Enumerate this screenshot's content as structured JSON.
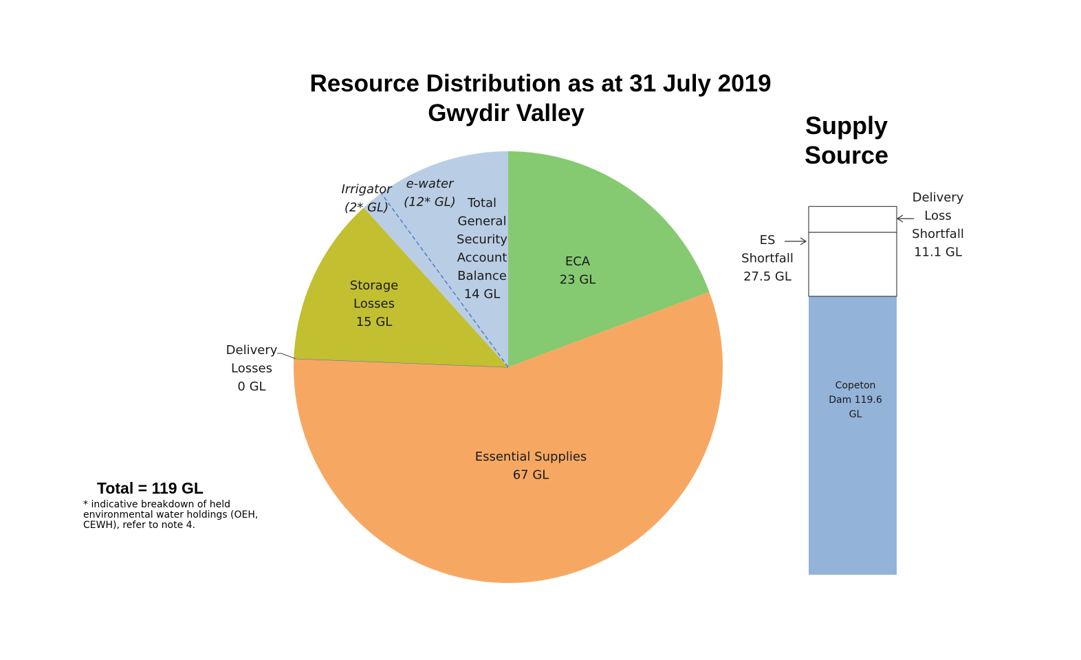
{
  "title_line1": "Resource Distribution as at 31 July 2019",
  "title_line2": "Gwydir Valley",
  "total": "Total = 119 GL",
  "footnote": "* indicative breakdown of held environmental water holdings (OEH, CEWH), refer to note 4.",
  "supply_title_line1": "Supply",
  "supply_title_line2": "Source",
  "colors": {
    "eca": "#85c971",
    "essential": "#f6a862",
    "delivery": "#3f6fb5",
    "storage": "#c2bf31",
    "general_security": "#b9cde4",
    "supply_bar": "#94b3d8",
    "supply_boxes": "#ffffff",
    "divider": "#4f7ec4"
  },
  "chart_data": [
    {
      "type": "pie",
      "title": "Resource Distribution as at 31 July 2019 Gwydir Valley",
      "total_label": "Total = 119 GL",
      "slices": [
        {
          "key": "eca",
          "label": [
            "ECA",
            "23 GL"
          ],
          "value": 23
        },
        {
          "key": "essential",
          "label": [
            "Essential Supplies",
            "67 GL"
          ],
          "value": 67
        },
        {
          "key": "delivery",
          "label": [
            "Delivery",
            "Losses",
            "0 GL"
          ],
          "value": 0
        },
        {
          "key": "storage",
          "label": [
            "Storage",
            "Losses",
            "15 GL"
          ],
          "value": 15
        },
        {
          "key": "general_security",
          "label": [
            "Total",
            "General",
            "Security",
            "Account",
            "Balance",
            "14 GL"
          ],
          "value": 14
        }
      ],
      "sub_breakdown": [
        {
          "label": [
            "Irrigator",
            "(2* GL)"
          ],
          "value": 2
        },
        {
          "label": [
            "e-water",
            "(12* GL)"
          ],
          "value": 12
        }
      ]
    },
    {
      "type": "bar",
      "title": "Supply Source",
      "stacked": true,
      "segments": [
        {
          "key": "copeton",
          "label": [
            "Copeton",
            "Dam  119.6",
            "GL"
          ],
          "value": 119.6
        },
        {
          "key": "es_shortfall",
          "label": [
            "ES",
            "Shortfall",
            "27.5 GL"
          ],
          "value": 27.5
        },
        {
          "key": "delivery_loss_shortfall",
          "label": [
            "Delivery",
            "Loss",
            "Shortfall",
            "11.1 GL"
          ],
          "value": 11.1
        }
      ]
    }
  ]
}
